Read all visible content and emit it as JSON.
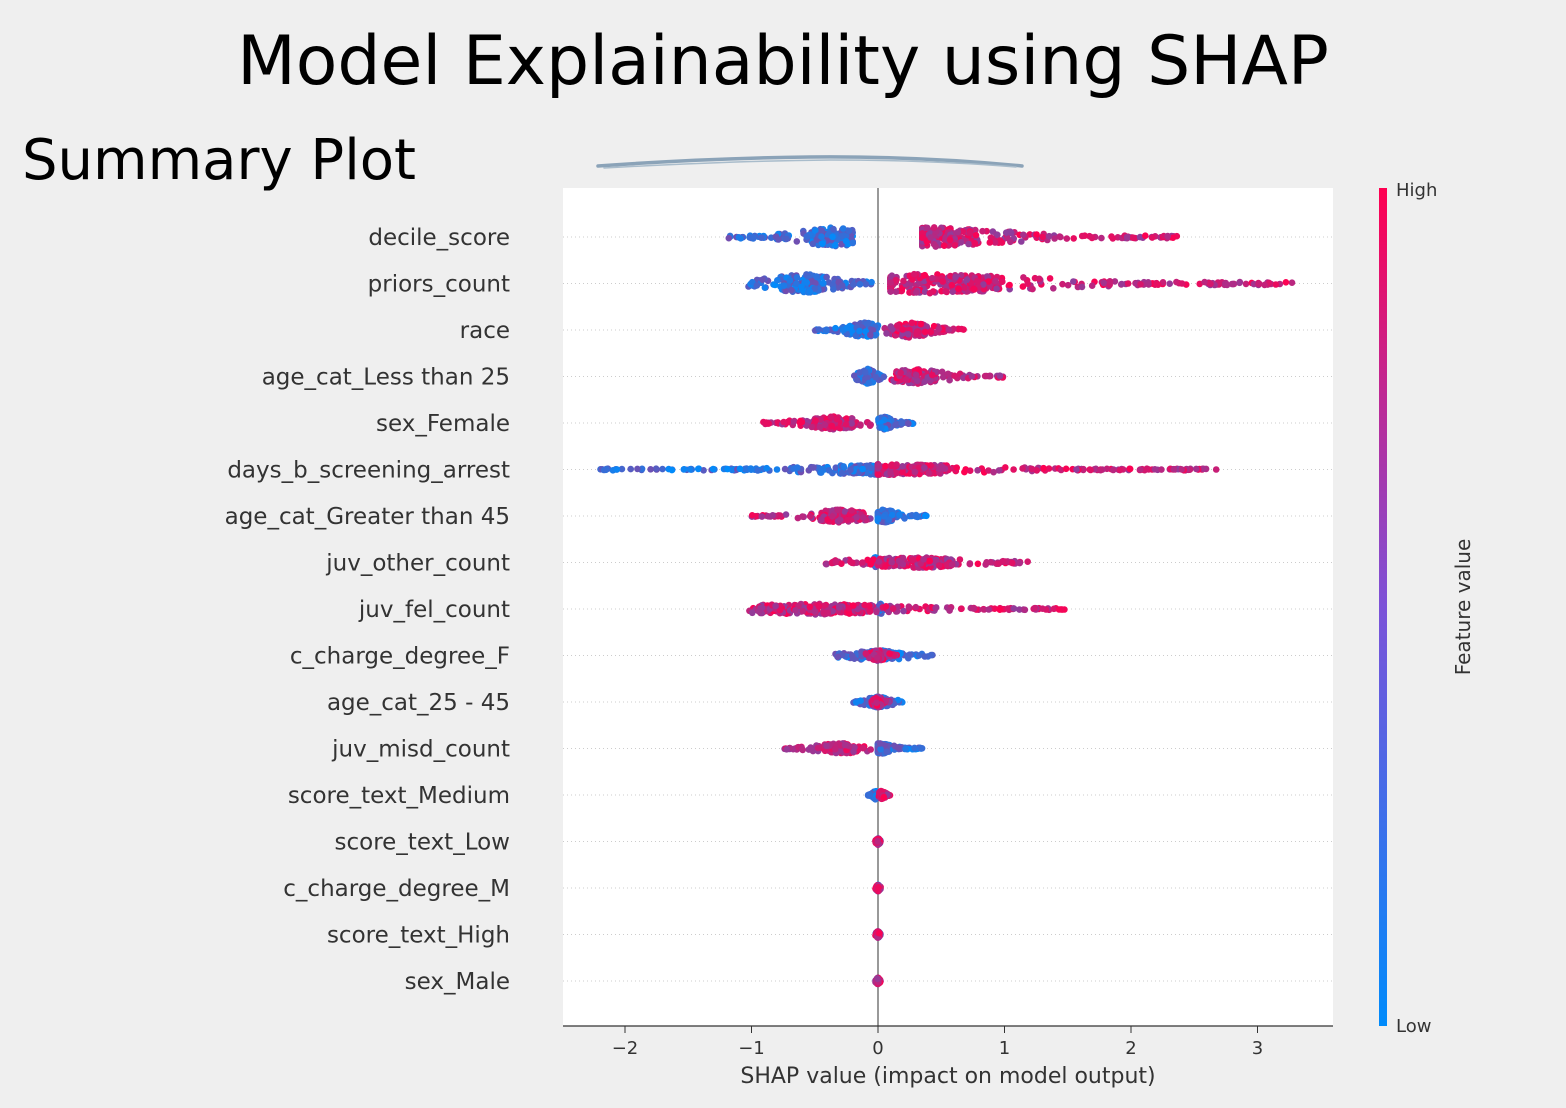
{
  "slide": {
    "title": "Model Explainability using SHAP",
    "subtitle": "Summary Plot"
  },
  "chart_data": {
    "type": "scatter",
    "subtype": "shap-beeswarm",
    "title": "",
    "xlabel": "SHAP value (impact on model output)",
    "ylabel": "",
    "xlim": [
      -2.5,
      3.6
    ],
    "xticks": [
      -2,
      -1,
      0,
      1,
      2,
      3
    ],
    "xtick_labels": [
      "−2",
      "−1",
      "0",
      "1",
      "2",
      "3"
    ],
    "grid": false,
    "colorbar": {
      "label": "Feature value",
      "high_label": "High",
      "low_label": "Low",
      "low_color": "#008bfb",
      "high_color": "#ff0051"
    },
    "features": [
      {
        "name": "decile_score",
        "low_range": [
          -1.2,
          -0.2
        ],
        "high_range": [
          0.35,
          2.4
        ],
        "low_core": -0.35,
        "high_core": 0.45,
        "spread": 18
      },
      {
        "name": "priors_count",
        "low_range": [
          -1.05,
          -0.05
        ],
        "high_range": [
          0.1,
          3.3
        ],
        "low_core": -0.6,
        "high_core": 0.4,
        "spread": 18
      },
      {
        "name": "race",
        "low_range": [
          -0.5,
          0.0
        ],
        "high_range": [
          0.05,
          0.7
        ],
        "low_core": -0.1,
        "high_core": 0.25,
        "spread": 14
      },
      {
        "name": "age_cat_Less than 25",
        "low_range": [
          -0.2,
          0.05
        ],
        "high_range": [
          0.1,
          1.0
        ],
        "low_core": -0.08,
        "high_core": 0.3,
        "spread": 14
      },
      {
        "name": "sex_Female",
        "low_range": [
          0.0,
          0.28
        ],
        "high_range": [
          -0.92,
          -0.05
        ],
        "low_core": 0.05,
        "high_core": -0.35,
        "spread": 12
      },
      {
        "name": "days_b_screening_arrest",
        "low_range": [
          -2.2,
          0.0
        ],
        "high_range": [
          0.0,
          2.7
        ],
        "low_core": 0.08,
        "high_core": 0.1,
        "spread": 10
      },
      {
        "name": "age_cat_Greater than 45",
        "low_range": [
          0.0,
          0.4
        ],
        "high_range": [
          -1.0,
          -0.05
        ],
        "low_core": 0.05,
        "high_core": -0.3,
        "spread": 12
      },
      {
        "name": "juv_other_count",
        "low_range": [
          -0.05,
          0.02
        ],
        "high_range": [
          -0.45,
          1.2
        ],
        "low_core": -0.02,
        "high_core": 0.3,
        "spread": 10
      },
      {
        "name": "juv_fel_count",
        "low_range": [
          0.0,
          0.05
        ],
        "high_range": [
          -1.05,
          1.5
        ],
        "low_core": 0.02,
        "high_core": -0.5,
        "spread": 10
      },
      {
        "name": "c_charge_degree_F",
        "low_range": [
          -0.35,
          0.45
        ],
        "high_range": [
          -0.1,
          0.15
        ],
        "low_core": 0.0,
        "high_core": 0.0,
        "spread": 10
      },
      {
        "name": "age_cat_25 - 45",
        "low_range": [
          -0.2,
          0.2
        ],
        "high_range": [
          -0.05,
          0.1
        ],
        "low_core": 0.0,
        "high_core": 0.0,
        "spread": 10
      },
      {
        "name": "juv_misd_count",
        "low_range": [
          0.0,
          0.35
        ],
        "high_range": [
          -0.75,
          -0.05
        ],
        "low_core": 0.02,
        "high_core": -0.3,
        "spread": 10
      },
      {
        "name": "score_text_Medium",
        "low_range": [
          -0.08,
          0.0
        ],
        "high_range": [
          0.0,
          0.1
        ],
        "low_core": -0.02,
        "high_core": 0.03,
        "spread": 8
      },
      {
        "name": "score_text_Low",
        "low_range": [
          -0.02,
          0.02
        ],
        "high_range": [
          -0.02,
          0.02
        ],
        "low_core": 0.0,
        "high_core": 0.0,
        "spread": 6
      },
      {
        "name": "c_charge_degree_M",
        "low_range": [
          -0.02,
          0.02
        ],
        "high_range": [
          -0.02,
          0.02
        ],
        "low_core": 0.0,
        "high_core": 0.0,
        "spread": 6
      },
      {
        "name": "score_text_High",
        "low_range": [
          -0.02,
          0.02
        ],
        "high_range": [
          -0.02,
          0.02
        ],
        "low_core": 0.0,
        "high_core": 0.0,
        "spread": 6
      },
      {
        "name": "sex_Male",
        "low_range": [
          -0.02,
          0.02
        ],
        "high_range": [
          -0.02,
          0.02
        ],
        "low_core": 0.0,
        "high_core": 0.0,
        "spread": 6
      }
    ]
  }
}
